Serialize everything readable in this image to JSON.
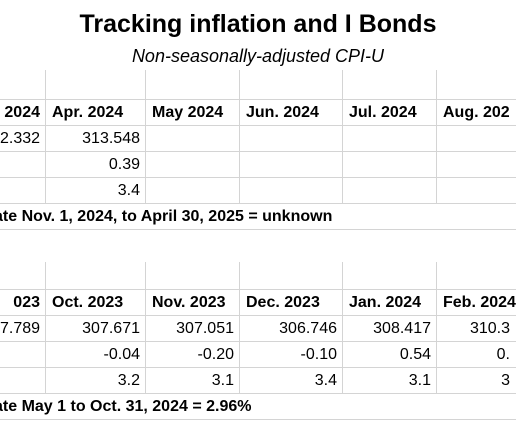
{
  "title": "Tracking inflation and I Bonds",
  "subtitle": "Non-seasonally-adjusted CPI-U",
  "table_2024": {
    "headers": [
      "2024",
      "Apr. 2024",
      "May 2024",
      "Jun. 2024",
      "Jul. 2024",
      "Aug. 202"
    ],
    "rows": [
      [
        "2.332",
        "313.548",
        "",
        "",
        "",
        ""
      ],
      [
        "",
        "0.39",
        "",
        "",
        "",
        ""
      ],
      [
        "",
        "3.4",
        "",
        "",
        "",
        ""
      ]
    ],
    "note": "ate Nov. 1, 2024, to April 30, 2025 = unknown"
  },
  "table_2023": {
    "headers": [
      "023",
      "Oct. 2023",
      "Nov. 2023",
      "Dec. 2023",
      "Jan. 2024",
      "Feb. 2024"
    ],
    "rows": [
      [
        "7.789",
        "307.671",
        "307.051",
        "306.746",
        "308.417",
        "310.3"
      ],
      [
        "",
        "-0.04",
        "-0.20",
        "-0.10",
        "0.54",
        "0."
      ],
      [
        "",
        "3.2",
        "3.1",
        "3.4",
        "3.1",
        "3"
      ]
    ],
    "note": "ate May 1 to Oct. 31, 2024 = 2.96%"
  }
}
